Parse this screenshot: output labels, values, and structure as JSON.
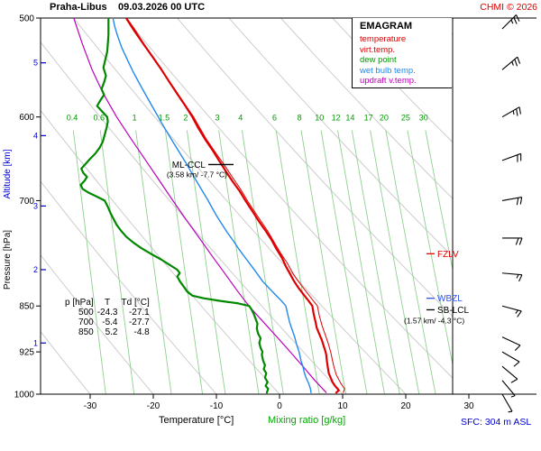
{
  "header": {
    "station": "Praha-Libus",
    "datetime": "09.03.2026 00 UTC",
    "copyright": "CHMI © 2026"
  },
  "legend": {
    "title": "EMAGRAM",
    "items": [
      {
        "label": "temperature",
        "color": "#dd0000"
      },
      {
        "label": "virt.temp.",
        "color": "#dd0000"
      },
      {
        "label": "dew point",
        "color": "#009900"
      },
      {
        "label": "wet bulb temp.",
        "color": "#2288ee"
      },
      {
        "label": "updraft v.temp.",
        "color": "#bb00bb"
      }
    ]
  },
  "axes": {
    "pressure_label": "Pressure [hPa]",
    "altitude_label": "Altitude [km]",
    "temperature_label": "Temperature [°C]",
    "mixing_ratio_label": "Mixing ratio [g/kg]",
    "pressure_ticks": [
      500,
      600,
      700,
      850,
      925,
      1000
    ],
    "altitude_ticks": [
      {
        "km": 5,
        "p": 543
      },
      {
        "km": 4,
        "p": 621
      },
      {
        "km": 3,
        "p": 707
      },
      {
        "km": 2,
        "p": 795
      },
      {
        "km": 1,
        "p": 910
      }
    ],
    "temperature_ticks": [
      -30,
      -20,
      -10,
      0,
      10,
      20,
      30
    ],
    "altitude_color": "#0000cc"
  },
  "annotations": {
    "ml_ccl": {
      "label": "ML-CCL",
      "detail": "(3.58 km/ -7.7 °C)",
      "pressure_hpa": 655,
      "color": "#000000"
    },
    "fzlv": {
      "label": "FZLV",
      "pressure_hpa": 772,
      "color": "#e00000"
    },
    "wbzl": {
      "label": "WBZL",
      "pressure_hpa": 838,
      "color": "#3355ee"
    },
    "sb_lcl": {
      "label": "SB-LCL",
      "detail": "(1.57 km/ -4.3 °C)",
      "pressure_hpa": 856,
      "color": "#000000"
    },
    "surface": "SFC: 304 m ASL"
  },
  "table": {
    "columns": [
      "p [hPa]",
      "T",
      "Td [°C]"
    ],
    "rows": [
      {
        "p": 500,
        "t": -24.3,
        "td": -27.1
      },
      {
        "p": 700,
        "t": -5.4,
        "td": -27.7
      },
      {
        "p": 850,
        "t": 5.2,
        "td": -4.8
      }
    ]
  },
  "chart_data": {
    "type": "line",
    "diagram": "emagram",
    "pressure_range_hpa": [
      1000,
      500
    ],
    "temperature_range_c": [
      -38,
      27
    ],
    "grid": {
      "dry_adiabats_theta_c": [
        -40,
        -30,
        -20,
        -10,
        0,
        10,
        20,
        30,
        40,
        50,
        60,
        70,
        80,
        90,
        100
      ],
      "adiabat_color": "#cdcdcd",
      "mixing_ratio_g_kg": [
        0.4,
        0.6,
        1,
        1.5,
        2,
        3,
        4,
        6,
        8,
        10,
        12,
        14,
        17,
        20,
        25,
        30
      ],
      "mixing_line_color": "#8fcf8f",
      "mixing_label_color": "#009900"
    },
    "series": [
      {
        "id": "updraft",
        "name": "updraft v.temp.",
        "color": "#bb00bb",
        "width": 1.2,
        "points": [
          [
            997,
            7.4
          ],
          [
            975,
            5.6
          ],
          [
            950,
            3.7
          ],
          [
            925,
            1.7
          ],
          [
            900,
            -0.4
          ],
          [
            875,
            -2.6
          ],
          [
            855,
            -4.4
          ],
          [
            843,
            -5.4
          ],
          [
            825,
            -6.8
          ],
          [
            800,
            -8.7
          ],
          [
            775,
            -10.7
          ],
          [
            750,
            -12.7
          ],
          [
            725,
            -14.8
          ],
          [
            700,
            -16.9
          ],
          [
            675,
            -19.0
          ],
          [
            650,
            -21.2
          ],
          [
            625,
            -23.5
          ],
          [
            600,
            -25.8
          ],
          [
            575,
            -27.9
          ],
          [
            550,
            -29.7
          ],
          [
            525,
            -31.2
          ],
          [
            500,
            -32.6
          ]
        ]
      },
      {
        "id": "wet_bulb",
        "name": "wet bulb temp.",
        "color": "#2288ee",
        "width": 1.4,
        "points": [
          [
            997,
            5.0
          ],
          [
            990,
            4.9
          ],
          [
            980,
            4.6
          ],
          [
            970,
            4.2
          ],
          [
            960,
            3.9
          ],
          [
            950,
            3.7
          ],
          [
            940,
            3.4
          ],
          [
            930,
            3.2
          ],
          [
            925,
            3.1
          ],
          [
            912,
            2.7
          ],
          [
            900,
            2.4
          ],
          [
            888,
            2.0
          ],
          [
            876,
            1.6
          ],
          [
            863,
            1.3
          ],
          [
            850,
            1.0
          ],
          [
            842,
            0.3
          ],
          [
            832,
            -0.7
          ],
          [
            822,
            -1.7
          ],
          [
            812,
            -2.7
          ],
          [
            800,
            -3.6
          ],
          [
            790,
            -4.4
          ],
          [
            778,
            -5.4
          ],
          [
            766,
            -6.4
          ],
          [
            754,
            -7.3
          ],
          [
            742,
            -8.3
          ],
          [
            730,
            -9.2
          ],
          [
            718,
            -10.1
          ],
          [
            706,
            -10.9
          ],
          [
            700,
            -11.3
          ],
          [
            688,
            -12.2
          ],
          [
            676,
            -13.1
          ],
          [
            664,
            -14.0
          ],
          [
            652,
            -14.9
          ],
          [
            640,
            -15.9
          ],
          [
            628,
            -16.9
          ],
          [
            616,
            -17.9
          ],
          [
            604,
            -18.9
          ],
          [
            600,
            -19.2
          ],
          [
            588,
            -20.2
          ],
          [
            576,
            -21.2
          ],
          [
            564,
            -22.2
          ],
          [
            552,
            -23.2
          ],
          [
            540,
            -24.1
          ],
          [
            528,
            -25.0
          ],
          [
            516,
            -25.7
          ],
          [
            508,
            -26.1
          ],
          [
            500,
            -26.4
          ]
        ]
      },
      {
        "id": "virt_temp",
        "name": "virt.temp.",
        "color": "#dd0000",
        "width": 1.0,
        "points": [
          [
            997,
            10.1
          ],
          [
            990,
            10.3
          ],
          [
            980,
            9.7
          ],
          [
            965,
            9.0
          ],
          [
            950,
            8.6
          ],
          [
            935,
            8.3
          ],
          [
            925,
            8.1
          ],
          [
            910,
            7.7
          ],
          [
            895,
            7.2
          ],
          [
            880,
            6.7
          ],
          [
            865,
            6.3
          ],
          [
            850,
            6.0
          ],
          [
            840,
            5.2
          ],
          [
            825,
            4.0
          ],
          [
            810,
            2.8
          ],
          [
            800,
            2.1
          ],
          [
            785,
            1.2
          ],
          [
            770,
            0.1
          ],
          [
            755,
            -0.9
          ],
          [
            740,
            -1.9
          ],
          [
            725,
            -3.1
          ],
          [
            710,
            -4.3
          ],
          [
            700,
            -5.1
          ],
          [
            685,
            -6.2
          ],
          [
            670,
            -7.5
          ],
          [
            655,
            -8.8
          ],
          [
            640,
            -10.2
          ],
          [
            625,
            -11.6
          ],
          [
            610,
            -12.8
          ],
          [
            600,
            -13.6
          ],
          [
            585,
            -15.1
          ],
          [
            570,
            -16.6
          ],
          [
            555,
            -18.2
          ],
          [
            540,
            -19.8
          ],
          [
            525,
            -21.4
          ],
          [
            510,
            -23.0
          ],
          [
            500,
            -24.2
          ]
        ]
      },
      {
        "id": "temperature",
        "name": "temperature",
        "color": "#dd0000",
        "width": 2.2,
        "points": [
          [
            997,
            9.0
          ],
          [
            993,
            9.4
          ],
          [
            990,
            9.2
          ],
          [
            985,
            8.8
          ],
          [
            978,
            8.4
          ],
          [
            970,
            8.1
          ],
          [
            962,
            7.8
          ],
          [
            955,
            7.7
          ],
          [
            948,
            7.6
          ],
          [
            940,
            7.5
          ],
          [
            930,
            7.4
          ],
          [
            925,
            7.3
          ],
          [
            915,
            7.0
          ],
          [
            905,
            6.7
          ],
          [
            895,
            6.3
          ],
          [
            885,
            5.9
          ],
          [
            875,
            5.7
          ],
          [
            862,
            5.4
          ],
          [
            850,
            5.2
          ],
          [
            842,
            4.6
          ],
          [
            832,
            3.8
          ],
          [
            822,
            3.0
          ],
          [
            812,
            2.3
          ],
          [
            800,
            1.6
          ],
          [
            790,
            1.0
          ],
          [
            778,
            0.4
          ],
          [
            765,
            -0.5
          ],
          [
            752,
            -1.3
          ],
          [
            740,
            -2.2
          ],
          [
            728,
            -3.2
          ],
          [
            715,
            -4.2
          ],
          [
            700,
            -5.4
          ],
          [
            688,
            -6.3
          ],
          [
            675,
            -7.5
          ],
          [
            662,
            -8.6
          ],
          [
            650,
            -9.6
          ],
          [
            638,
            -10.6
          ],
          [
            625,
            -11.8
          ],
          [
            612,
            -12.9
          ],
          [
            600,
            -13.8
          ],
          [
            588,
            -14.9
          ],
          [
            575,
            -16.2
          ],
          [
            562,
            -17.5
          ],
          [
            550,
            -18.7
          ],
          [
            538,
            -20.0
          ],
          [
            525,
            -21.5
          ],
          [
            512,
            -23.0
          ],
          [
            500,
            -24.3
          ]
        ]
      },
      {
        "id": "dew_point",
        "name": "dew point",
        "color": "#008800",
        "width": 2.2,
        "points": [
          [
            997,
            -2.0
          ],
          [
            990,
            -1.8
          ],
          [
            985,
            -2.2
          ],
          [
            978,
            -1.9
          ],
          [
            970,
            -2.3
          ],
          [
            962,
            -2.1
          ],
          [
            955,
            -2.5
          ],
          [
            948,
            -2.3
          ],
          [
            940,
            -2.6
          ],
          [
            930,
            -2.8
          ],
          [
            925,
            -2.7
          ],
          [
            918,
            -3.0
          ],
          [
            910,
            -3.2
          ],
          [
            902,
            -3.0
          ],
          [
            894,
            -3.4
          ],
          [
            886,
            -3.6
          ],
          [
            878,
            -3.5
          ],
          [
            870,
            -3.8
          ],
          [
            862,
            -4.1
          ],
          [
            856,
            -4.4
          ],
          [
            850,
            -4.8
          ],
          [
            846,
            -6.5
          ],
          [
            842,
            -9.5
          ],
          [
            838,
            -12.0
          ],
          [
            834,
            -13.8
          ],
          [
            828,
            -14.6
          ],
          [
            820,
            -15.2
          ],
          [
            812,
            -15.8
          ],
          [
            805,
            -16.2
          ],
          [
            800,
            -15.8
          ],
          [
            795,
            -16.2
          ],
          [
            788,
            -17.4
          ],
          [
            780,
            -18.8
          ],
          [
            772,
            -20.4
          ],
          [
            764,
            -21.9
          ],
          [
            756,
            -23.2
          ],
          [
            748,
            -24.3
          ],
          [
            740,
            -25.1
          ],
          [
            732,
            -25.8
          ],
          [
            724,
            -26.3
          ],
          [
            716,
            -26.8
          ],
          [
            708,
            -27.2
          ],
          [
            700,
            -27.7
          ],
          [
            695,
            -28.9
          ],
          [
            690,
            -30.2
          ],
          [
            685,
            -31.2
          ],
          [
            680,
            -31.5
          ],
          [
            675,
            -30.9
          ],
          [
            670,
            -30.5
          ],
          [
            665,
            -31.1
          ],
          [
            660,
            -31.4
          ],
          [
            654,
            -30.7
          ],
          [
            648,
            -30.0
          ],
          [
            642,
            -29.2
          ],
          [
            635,
            -28.5
          ],
          [
            628,
            -28.0
          ],
          [
            620,
            -27.7
          ],
          [
            612,
            -27.4
          ],
          [
            605,
            -27.2
          ],
          [
            600,
            -27.3
          ],
          [
            594,
            -28.1
          ],
          [
            588,
            -28.9
          ],
          [
            582,
            -28.4
          ],
          [
            576,
            -27.8
          ],
          [
            570,
            -28.2
          ],
          [
            563,
            -27.8
          ],
          [
            556,
            -27.5
          ],
          [
            548,
            -27.9
          ],
          [
            540,
            -27.6
          ],
          [
            532,
            -27.3
          ],
          [
            524,
            -27.2
          ],
          [
            516,
            -27.1
          ],
          [
            508,
            -27.1
          ],
          [
            500,
            -27.1
          ]
        ]
      }
    ],
    "winds": [
      {
        "p": 500,
        "dir": 45,
        "spd": 25
      },
      {
        "p": 550,
        "dir": 50,
        "spd": 25
      },
      {
        "p": 600,
        "dir": 60,
        "spd": 25
      },
      {
        "p": 650,
        "dir": 70,
        "spd": 20
      },
      {
        "p": 700,
        "dir": 80,
        "spd": 20
      },
      {
        "p": 750,
        "dir": 90,
        "spd": 20
      },
      {
        "p": 800,
        "dir": 95,
        "spd": 15
      },
      {
        "p": 850,
        "dir": 105,
        "spd": 15
      },
      {
        "p": 900,
        "dir": 115,
        "spd": 10
      },
      {
        "p": 925,
        "dir": 120,
        "spd": 10
      },
      {
        "p": 950,
        "dir": 130,
        "spd": 10
      },
      {
        "p": 975,
        "dir": 140,
        "spd": 5
      },
      {
        "p": 1000,
        "dir": 150,
        "spd": 5
      }
    ]
  }
}
